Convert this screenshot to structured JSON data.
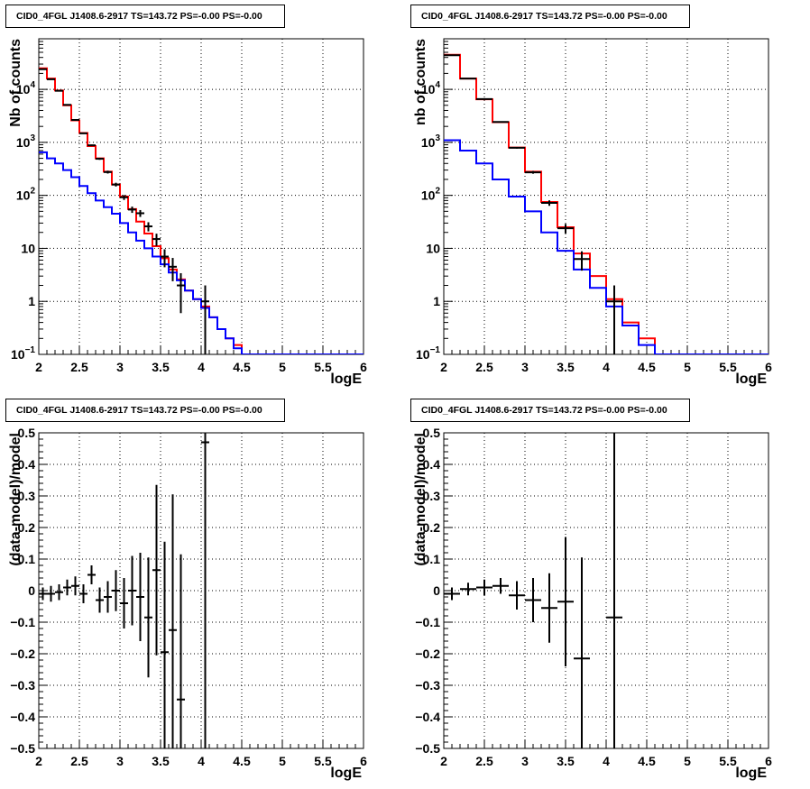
{
  "colors": {
    "model": "#ff0000",
    "background": "#0000ff",
    "data": "#000000",
    "grid": "#000000"
  },
  "chart_data": [
    {
      "id": "counts-left",
      "type": "line",
      "title": "CID0_4FGL J1408.6-2917 TS=143.72 PS=-0.00 PS=-0.00",
      "xlabel": "logE",
      "ylabel": "Nb of counts",
      "yscale": "log",
      "xlim": [
        2,
        6
      ],
      "ylim": [
        0.1,
        90000
      ],
      "grid": true,
      "xticks": [
        "2",
        "2.5",
        "3",
        "3.5",
        "4",
        "4.5",
        "5",
        "5.5",
        "6"
      ],
      "yticks": [
        {
          "value": 0.1,
          "label": "10",
          "sup": "−1"
        },
        {
          "value": 1,
          "label": "1",
          "sup": ""
        },
        {
          "value": 10,
          "label": "10",
          "sup": ""
        },
        {
          "value": 100,
          "label": "10",
          "sup": "2"
        },
        {
          "value": 1000,
          "label": "10",
          "sup": "3"
        },
        {
          "value": 10000,
          "label": "10",
          "sup": "4"
        }
      ],
      "bin_edges": [
        2,
        2.1,
        2.2,
        2.3,
        2.4,
        2.5,
        2.6,
        2.7,
        2.8,
        2.9,
        3,
        3.1,
        3.2,
        3.3,
        3.4,
        3.5,
        3.6,
        3.7,
        3.8,
        3.9,
        4,
        4.1,
        4.2,
        4.3,
        4.4,
        4.5,
        4.6,
        4.7,
        4.8,
        4.9,
        5,
        5.1,
        5.2,
        5.3,
        5.4,
        5.5,
        5.6,
        5.7,
        5.8,
        5.9,
        6
      ],
      "series": [
        {
          "role": "model",
          "values": [
            25000,
            16000,
            9500,
            5000,
            2600,
            1500,
            850,
            500,
            280,
            160,
            95,
            55,
            32,
            19,
            11,
            6.5,
            4,
            2.6,
            1.6,
            1.1,
            0.8,
            0.5,
            0.3,
            0.2,
            0.15,
            0.1,
            0.1,
            0.1,
            0.1,
            0.1,
            0.1,
            0.1,
            0.1,
            0.1,
            0.1,
            0.1,
            0.1,
            0.1,
            0.1,
            0.1
          ]
        },
        {
          "role": "background",
          "values": [
            650,
            500,
            400,
            300,
            220,
            150,
            110,
            80,
            60,
            45,
            30,
            20,
            14,
            10,
            7,
            5,
            3.5,
            2.5,
            1.6,
            1.1,
            0.75,
            0.5,
            0.3,
            0.2,
            0.13,
            0.1,
            0.1,
            0.1,
            0.1,
            0.1,
            0.1,
            0.1,
            0.1,
            0.1,
            0.1,
            0.1,
            0.1,
            0.1,
            0.1,
            0.1
          ]
        }
      ],
      "points": [
        {
          "x": 2.05,
          "y": 24000,
          "err": 160
        },
        {
          "x": 2.15,
          "y": 15500,
          "err": 125
        },
        {
          "x": 2.25,
          "y": 9400,
          "err": 97
        },
        {
          "x": 2.35,
          "y": 5100,
          "err": 71
        },
        {
          "x": 2.45,
          "y": 2650,
          "err": 51
        },
        {
          "x": 2.55,
          "y": 1480,
          "err": 38
        },
        {
          "x": 2.65,
          "y": 880,
          "err": 30
        },
        {
          "x": 2.75,
          "y": 490,
          "err": 22
        },
        {
          "x": 2.85,
          "y": 275,
          "err": 17
        },
        {
          "x": 2.95,
          "y": 160,
          "err": 13
        },
        {
          "x": 3.05,
          "y": 92,
          "err": 10
        },
        {
          "x": 3.15,
          "y": 54,
          "err": 7.3
        },
        {
          "x": 3.25,
          "y": 46,
          "err": 6.8
        },
        {
          "x": 3.35,
          "y": 26,
          "err": 5.1
        },
        {
          "x": 3.45,
          "y": 15,
          "err": 3.9
        },
        {
          "x": 3.55,
          "y": 7,
          "err": 2.6
        },
        {
          "x": 3.65,
          "y": 4.5,
          "err": 2.1
        },
        {
          "x": 3.75,
          "y": 2,
          "err": 1.4
        },
        {
          "x": 4.05,
          "y": 1,
          "err": 1
        }
      ]
    },
    {
      "id": "counts-right",
      "type": "line",
      "title": "CID0_4FGL J1408.6-2917 TS=143.72 PS=-0.00 PS=-0.00",
      "xlabel": "logE",
      "ylabel": "nb of counts",
      "yscale": "log",
      "xlim": [
        2,
        6
      ],
      "ylim": [
        0.1,
        90000
      ],
      "grid": true,
      "xticks": [
        "2",
        "2.5",
        "3",
        "3.5",
        "4",
        "4.5",
        "5",
        "5.5",
        "6"
      ],
      "yticks": [
        {
          "value": 0.1,
          "label": "10",
          "sup": "−1"
        },
        {
          "value": 1,
          "label": "1",
          "sup": ""
        },
        {
          "value": 10,
          "label": "10",
          "sup": ""
        },
        {
          "value": 100,
          "label": "10",
          "sup": "2"
        },
        {
          "value": 1000,
          "label": "10",
          "sup": "3"
        },
        {
          "value": 10000,
          "label": "10",
          "sup": "4"
        }
      ],
      "bin_edges": [
        2,
        2.2,
        2.4,
        2.6,
        2.8,
        3,
        3.2,
        3.4,
        3.6,
        3.8,
        4,
        4.2,
        4.4,
        4.6,
        4.8,
        5,
        5.2,
        5.4,
        5.6,
        5.8,
        6
      ],
      "series": [
        {
          "role": "model",
          "values": [
            45000,
            16000,
            6500,
            2400,
            800,
            280,
            75,
            25,
            8,
            3,
            1.1,
            0.4,
            0.2,
            0.1,
            0.1,
            0.1,
            0.1,
            0.1,
            0.1,
            0.1
          ]
        },
        {
          "role": "background",
          "values": [
            1100,
            700,
            400,
            200,
            95,
            50,
            20,
            9,
            4,
            1.8,
            0.8,
            0.35,
            0.15,
            0.1,
            0.1,
            0.1,
            0.1,
            0.1,
            0.1,
            0.1
          ]
        }
      ],
      "points": [
        {
          "x": 2.1,
          "y": 44000,
          "err": 210
        },
        {
          "x": 2.3,
          "y": 16000,
          "err": 126
        },
        {
          "x": 2.5,
          "y": 6550,
          "err": 81
        },
        {
          "x": 2.7,
          "y": 2430,
          "err": 49
        },
        {
          "x": 2.9,
          "y": 790,
          "err": 28
        },
        {
          "x": 3.1,
          "y": 272,
          "err": 16
        },
        {
          "x": 3.3,
          "y": 72,
          "err": 8.5
        },
        {
          "x": 3.5,
          "y": 24,
          "err": 4.9
        },
        {
          "x": 3.7,
          "y": 6.3,
          "err": 2.5
        },
        {
          "x": 4.1,
          "y": 1,
          "err": 1
        }
      ]
    },
    {
      "id": "residual-left",
      "type": "scatter",
      "title": "CID0_4FGL J1408.6-2917 TS=143.72 PS=-0.00 PS=-0.00",
      "xlabel": "logE",
      "ylabel": "(data-model)/model",
      "yscale": "linear",
      "xlim": [
        2,
        6
      ],
      "ylim": [
        -0.5,
        0.5
      ],
      "grid": true,
      "xticks": [
        "2",
        "2.5",
        "3",
        "3.5",
        "4",
        "4.5",
        "5",
        "5.5",
        "6"
      ],
      "yticks": [
        {
          "value": -0.5,
          "label": "−0.5",
          "sup": ""
        },
        {
          "value": -0.4,
          "label": "−0.4",
          "sup": ""
        },
        {
          "value": -0.3,
          "label": "−0.3",
          "sup": ""
        },
        {
          "value": -0.2,
          "label": "−0.2",
          "sup": ""
        },
        {
          "value": -0.1,
          "label": "−0.1",
          "sup": ""
        },
        {
          "value": 0,
          "label": "0",
          "sup": ""
        },
        {
          "value": 0.1,
          "label": "0.1",
          "sup": ""
        },
        {
          "value": 0.2,
          "label": "0.2",
          "sup": ""
        },
        {
          "value": 0.3,
          "label": "0.3",
          "sup": ""
        },
        {
          "value": 0.4,
          "label": "0.4",
          "sup": ""
        },
        {
          "value": 0.5,
          "label": "0.5",
          "sup": ""
        }
      ],
      "bin_half_width": 0.05,
      "points": [
        {
          "x": 2.05,
          "y": -0.01,
          "err": 0.02
        },
        {
          "x": 2.15,
          "y": -0.01,
          "err": 0.025
        },
        {
          "x": 2.25,
          "y": -0.005,
          "err": 0.025
        },
        {
          "x": 2.35,
          "y": 0.01,
          "err": 0.025
        },
        {
          "x": 2.45,
          "y": 0.015,
          "err": 0.03
        },
        {
          "x": 2.55,
          "y": -0.01,
          "err": 0.03
        },
        {
          "x": 2.65,
          "y": 0.05,
          "err": 0.03
        },
        {
          "x": 2.75,
          "y": -0.03,
          "err": 0.04
        },
        {
          "x": 2.85,
          "y": -0.02,
          "err": 0.05
        },
        {
          "x": 2.95,
          "y": 0.0,
          "err": 0.065
        },
        {
          "x": 3.05,
          "y": -0.04,
          "err": 0.08
        },
        {
          "x": 3.15,
          "y": 0.0,
          "err": 0.11
        },
        {
          "x": 3.25,
          "y": -0.02,
          "err": 0.14
        },
        {
          "x": 3.35,
          "y": -0.085,
          "err": 0.19
        },
        {
          "x": 3.45,
          "y": 0.065,
          "err": 0.27
        },
        {
          "x": 3.55,
          "y": -0.195,
          "err": 0.35
        },
        {
          "x": 3.65,
          "y": -0.125,
          "err": 0.43
        },
        {
          "x": 3.75,
          "y": -0.345,
          "err": 0.46
        },
        {
          "x": 4.05,
          "y": 0.47,
          "err": 1.0
        }
      ]
    },
    {
      "id": "residual-right",
      "type": "scatter",
      "title": "CID0_4FGL J1408.6-2917 TS=143.72 PS=-0.00 PS=-0.00",
      "xlabel": "logE",
      "ylabel": "(data-model)/model",
      "yscale": "linear",
      "xlim": [
        2,
        6
      ],
      "ylim": [
        -0.5,
        0.5
      ],
      "grid": true,
      "xticks": [
        "2",
        "2.5",
        "3",
        "3.5",
        "4",
        "4.5",
        "5",
        "5.5",
        "6"
      ],
      "yticks": [
        {
          "value": -0.5,
          "label": "−0.5",
          "sup": ""
        },
        {
          "value": -0.4,
          "label": "−0.4",
          "sup": ""
        },
        {
          "value": -0.3,
          "label": "−0.3",
          "sup": ""
        },
        {
          "value": -0.2,
          "label": "−0.2",
          "sup": ""
        },
        {
          "value": -0.1,
          "label": "−0.1",
          "sup": ""
        },
        {
          "value": 0,
          "label": "0",
          "sup": ""
        },
        {
          "value": 0.1,
          "label": "0.1",
          "sup": ""
        },
        {
          "value": 0.2,
          "label": "0.2",
          "sup": ""
        },
        {
          "value": 0.3,
          "label": "0.3",
          "sup": ""
        },
        {
          "value": 0.4,
          "label": "0.4",
          "sup": ""
        },
        {
          "value": 0.5,
          "label": "0.5",
          "sup": ""
        }
      ],
      "bin_half_width": 0.1,
      "points": [
        {
          "x": 2.1,
          "y": -0.01,
          "err": 0.02
        },
        {
          "x": 2.3,
          "y": 0.005,
          "err": 0.02
        },
        {
          "x": 2.5,
          "y": 0.01,
          "err": 0.025
        },
        {
          "x": 2.7,
          "y": 0.015,
          "err": 0.025
        },
        {
          "x": 2.9,
          "y": -0.015,
          "err": 0.045
        },
        {
          "x": 3.1,
          "y": -0.03,
          "err": 0.07
        },
        {
          "x": 3.3,
          "y": -0.055,
          "err": 0.11
        },
        {
          "x": 3.5,
          "y": -0.035,
          "err": 0.205
        },
        {
          "x": 3.7,
          "y": -0.215,
          "err": 0.32
        },
        {
          "x": 4.1,
          "y": -0.085,
          "err": 1.0
        }
      ]
    }
  ]
}
